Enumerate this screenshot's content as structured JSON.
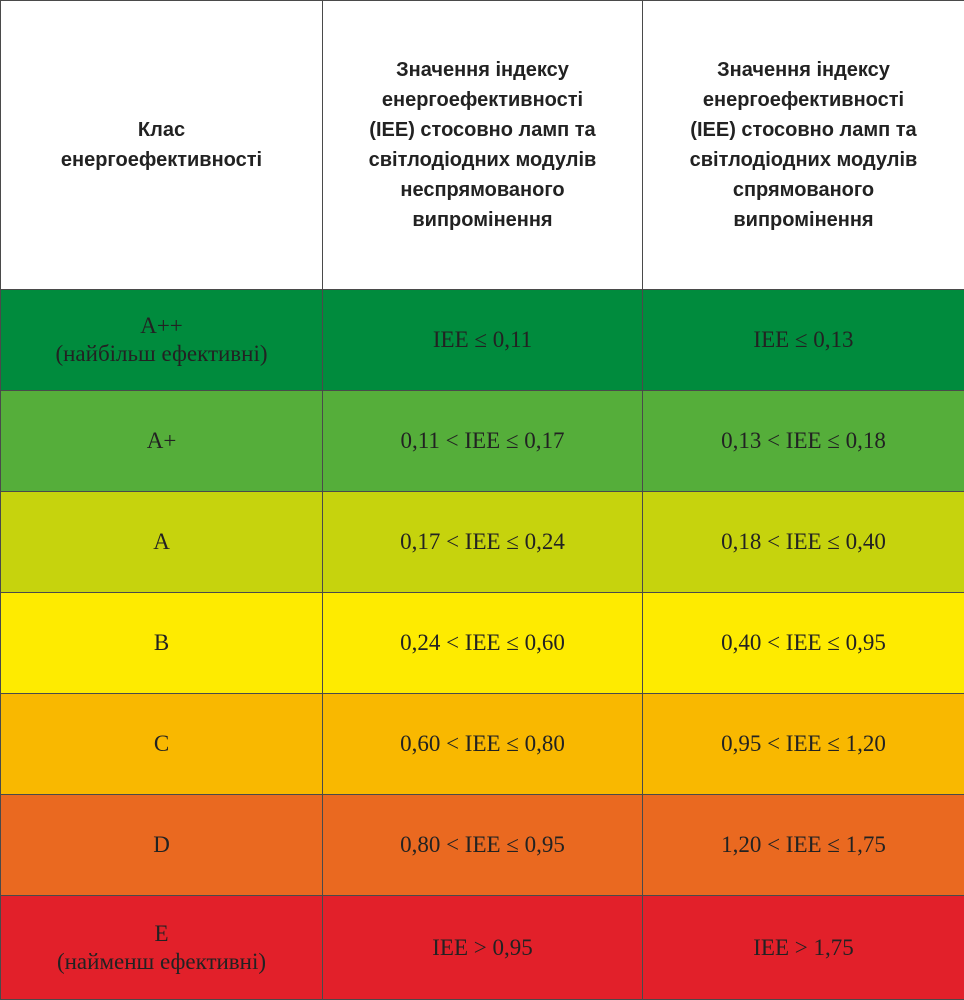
{
  "table": {
    "header": [
      [
        "Клас",
        "енергоефективності"
      ],
      [
        "Значення індексу",
        "енергоефективності",
        "(IEE) стосовно ламп та",
        "світлодіодних модулів",
        "неспрямованого",
        "випромінення"
      ],
      [
        "Значення індексу",
        "енергоефективності",
        "(IEE) стосовно ламп та",
        "світлодіодних модулів",
        "спрямованого",
        "випромінення"
      ]
    ],
    "rows": [
      {
        "class": [
          "A++",
          "(найбільш ефективні)"
        ],
        "cells": [
          "IEE ≤ 0,11",
          "IEE ≤ 0,13"
        ],
        "color": "#008b3d"
      },
      {
        "class": [
          "A+"
        ],
        "cells": [
          "0,11 < IEE ≤ 0,17",
          "0,13 < IEE ≤ 0,18"
        ],
        "color": "#55ae3a"
      },
      {
        "class": [
          "A"
        ],
        "cells": [
          "0,17 < IEE ≤ 0,24",
          "0,18 < IEE ≤ 0,40"
        ],
        "color": "#c6d30d"
      },
      {
        "class": [
          "B"
        ],
        "cells": [
          "0,24 < IEE ≤ 0,60",
          "0,40 < IEE ≤ 0,95"
        ],
        "color": "#feeb00"
      },
      {
        "class": [
          "C"
        ],
        "cells": [
          "0,60 < IEE ≤ 0,80",
          "0,95 < IEE ≤ 1,20"
        ],
        "color": "#f9b800"
      },
      {
        "class": [
          "D"
        ],
        "cells": [
          "0,80 < IEE ≤ 0,95",
          "1,20 < IEE ≤ 1,75"
        ],
        "color": "#ea6920"
      },
      {
        "class": [
          "E",
          "(найменш ефективні)"
        ],
        "cells": [
          "IEE > 0,95",
          "IEE > 1,75"
        ],
        "color": "#e2202a"
      }
    ]
  }
}
